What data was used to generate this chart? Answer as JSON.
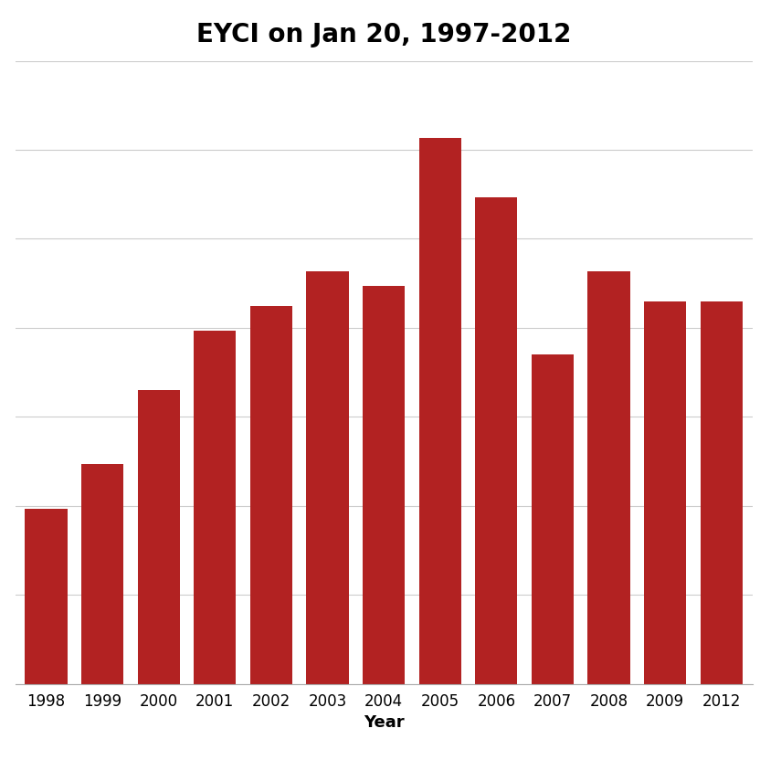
{
  "title": "EYCI on Jan 20, 1997-2012",
  "xlabel": "Year",
  "categories": [
    1998,
    1999,
    2000,
    2001,
    2002,
    2003,
    2004,
    2005,
    2006,
    2007,
    2008,
    2009,
    2012
  ],
  "values": [
    118,
    148,
    198,
    238,
    255,
    278,
    268,
    368,
    328,
    222,
    278,
    258,
    258
  ],
  "bar_color": "#b22222",
  "background_color": "#ffffff",
  "title_fontsize": 20,
  "label_fontsize": 13,
  "tick_fontsize": 12,
  "ylim": [
    0,
    420
  ],
  "ytick_step": 60
}
